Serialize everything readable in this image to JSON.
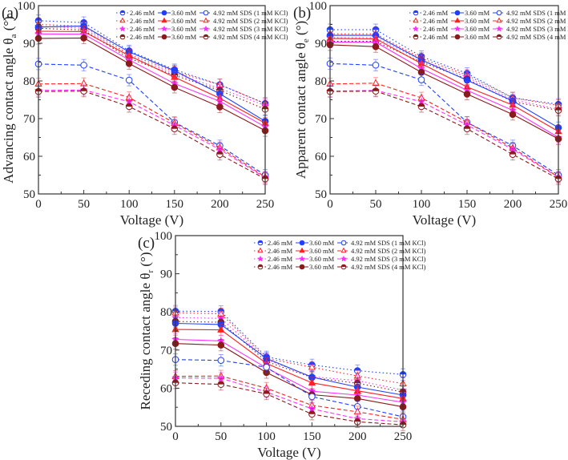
{
  "chart_data": [
    {
      "type": "line",
      "panel_label": "(a)",
      "xlabel": "Voltage (V)",
      "ylabel_main": "Advancing contact angle  θ",
      "ylabel_sub": "a",
      "ylabel_unit": " (°)",
      "xlim": [
        0,
        250
      ],
      "ylim": [
        50,
        100
      ],
      "xticks": [
        0,
        50,
        100,
        150,
        200,
        250
      ],
      "yticks": [
        50,
        60,
        70,
        80,
        90,
        100
      ],
      "grid": false,
      "legend_placement": "top-right",
      "yerr": 1.5,
      "x": [
        0,
        50,
        100,
        150,
        200,
        250
      ],
      "series": [
        {
          "name": "2.46 mM",
          "kcl_row": 0,
          "style": "dotted",
          "color": "#1f3fff",
          "marker": "circle-half",
          "values": [
            96,
            95.5,
            88,
            83,
            79,
            74
          ]
        },
        {
          "name": "2.46 mM",
          "kcl_row": 1,
          "style": "dotted",
          "color": "#ff2020",
          "marker": "triangle-open",
          "values": [
            95,
            94.5,
            87,
            82.5,
            79,
            74
          ]
        },
        {
          "name": "2.46 mM",
          "kcl_row": 2,
          "style": "dotted",
          "color": "#ff30ff",
          "marker": "star",
          "values": [
            94.5,
            94,
            86.5,
            82,
            78,
            73.5
          ]
        },
        {
          "name": "2.46 mM",
          "kcl_row": 3,
          "style": "dotted",
          "color": "#8b1a1a",
          "marker": "circle-half",
          "values": [
            94,
            93.5,
            86,
            81.5,
            77.5,
            72.5
          ]
        },
        {
          "name": "3.60 mM",
          "kcl_row": 0,
          "style": "solid",
          "color": "#1f3fff",
          "marker": "circle",
          "values": [
            94.3,
            94.6,
            87.7,
            82.7,
            76.6,
            69.3
          ]
        },
        {
          "name": "3.60 mM",
          "kcl_row": 1,
          "style": "solid",
          "color": "#ff2020",
          "marker": "triangle",
          "values": [
            93.2,
            93.1,
            86.7,
            81,
            75.4,
            68.8
          ]
        },
        {
          "name": "3.60 mM",
          "kcl_row": 2,
          "style": "solid",
          "color": "#ff30ff",
          "marker": "star",
          "values": [
            92.5,
            92.4,
            85.6,
            79.3,
            74.6,
            67.8
          ]
        },
        {
          "name": "3.60 mM",
          "kcl_row": 3,
          "style": "solid",
          "color": "#8b1a1a",
          "marker": "circle",
          "values": [
            91.3,
            91.4,
            84.6,
            78.3,
            73.1,
            66.8
          ]
        },
        {
          "name": "4.92 mM SDS  (1 mM KCl)",
          "kcl_row": 0,
          "style": "dashed",
          "color": "#1f3fff",
          "marker": "circle-open",
          "values": [
            84.5,
            84.2,
            80.2,
            69,
            62.8,
            55
          ]
        },
        {
          "name": "4.92 mM SDS  (2 mM KCl)",
          "kcl_row": 1,
          "style": "dashed",
          "color": "#ff2020",
          "marker": "triangle-open",
          "values": [
            79.2,
            79.3,
            75.6,
            68.8,
            62.3,
            54.5
          ]
        },
        {
          "name": "4.92 mM SDS  (3 mM KCl)",
          "kcl_row": 2,
          "style": "dashed",
          "color": "#ff30ff",
          "marker": "star",
          "values": [
            77.5,
            77.6,
            74.5,
            68.2,
            61.8,
            54.3
          ]
        },
        {
          "name": "4.92 mM SDS  (4 mM KCl)",
          "kcl_row": 3,
          "style": "dashed",
          "color": "#8b1a1a",
          "marker": "circle-half",
          "values": [
            77.2,
            77.3,
            73.2,
            67.3,
            60.5,
            54
          ]
        }
      ]
    },
    {
      "type": "line",
      "panel_label": "(b)",
      "xlabel": "Voltage (V)",
      "ylabel_main": "Apparent contact angle θ",
      "ylabel_sub": "e",
      "ylabel_unit": " (°)",
      "xlim": [
        0,
        250
      ],
      "ylim": [
        50,
        100
      ],
      "xticks": [
        0,
        50,
        100,
        150,
        200,
        250
      ],
      "yticks": [
        50,
        60,
        70,
        80,
        90,
        100
      ],
      "grid": false,
      "legend_placement": "top-right",
      "yerr": 1.5,
      "x": [
        0,
        50,
        100,
        150,
        200,
        250
      ],
      "series": [
        {
          "name": "2.46 mM",
          "kcl_row": 0,
          "style": "dotted",
          "color": "#1f3fff",
          "marker": "circle-half",
          "values": [
            93.6,
            93.6,
            86.5,
            82,
            75.5,
            73.8
          ]
        },
        {
          "name": "2.46 mM",
          "kcl_row": 1,
          "style": "dotted",
          "color": "#ff2020",
          "marker": "triangle-open",
          "values": [
            92.5,
            92.5,
            86,
            81.5,
            75.5,
            73.5
          ]
        },
        {
          "name": "2.46 mM",
          "kcl_row": 2,
          "style": "dotted",
          "color": "#ff30ff",
          "marker": "star",
          "values": [
            91.5,
            91.5,
            85.5,
            81,
            75,
            72.5
          ]
        },
        {
          "name": "2.46 mM",
          "kcl_row": 3,
          "style": "dotted",
          "color": "#8b1a1a",
          "marker": "circle-half",
          "values": [
            90.5,
            90.5,
            85,
            80.5,
            74.5,
            72.2
          ]
        },
        {
          "name": "3.60 mM",
          "kcl_row": 0,
          "style": "solid",
          "color": "#1f3fff",
          "marker": "circle",
          "values": [
            92.1,
            92.1,
            85.6,
            80.2,
            74.7,
            67.6
          ]
        },
        {
          "name": "3.60 mM",
          "kcl_row": 1,
          "style": "solid",
          "color": "#ff2020",
          "marker": "triangle",
          "values": [
            91.3,
            91.2,
            84.6,
            78.4,
            73.6,
            66.6
          ]
        },
        {
          "name": "3.60 mM",
          "kcl_row": 2,
          "style": "solid",
          "color": "#ff30ff",
          "marker": "star",
          "values": [
            90.3,
            90.3,
            83.3,
            77.5,
            72.2,
            65
          ]
        },
        {
          "name": "3.60 mM",
          "kcl_row": 3,
          "style": "solid",
          "color": "#8b1a1a",
          "marker": "circle",
          "values": [
            89.6,
            89.1,
            82.3,
            76.5,
            71.1,
            64.6
          ]
        },
        {
          "name": "4.92 mM SDS  (1 mM KCl)",
          "kcl_row": 0,
          "style": "dashed",
          "color": "#1f3fff",
          "marker": "circle-open",
          "values": [
            84.6,
            84.2,
            80.3,
            69,
            62.8,
            55
          ]
        },
        {
          "name": "4.92 mM SDS  (2 mM KCl)",
          "kcl_row": 1,
          "style": "dashed",
          "color": "#ff2020",
          "marker": "triangle-open",
          "values": [
            79.2,
            79.4,
            75.5,
            69,
            62.2,
            54.5
          ]
        },
        {
          "name": "4.92 mM SDS  (3 mM KCl)",
          "kcl_row": 2,
          "style": "dashed",
          "color": "#ff30ff",
          "marker": "star",
          "values": [
            77.3,
            77.5,
            74.5,
            68.3,
            61.8,
            54.4
          ]
        },
        {
          "name": "4.92 mM SDS  (4 mM KCl)",
          "kcl_row": 3,
          "style": "dashed",
          "color": "#8b1a1a",
          "marker": "circle-half",
          "values": [
            77.2,
            77.3,
            73.2,
            67.3,
            60.5,
            54
          ]
        }
      ]
    },
    {
      "type": "line",
      "panel_label": "(c)",
      "xlabel": "Voltage (V)",
      "ylabel_main": "Receding contact angle θ",
      "ylabel_sub": "r",
      "ylabel_unit": " (°)",
      "xlim": [
        0,
        250
      ],
      "ylim": [
        50,
        100
      ],
      "xticks": [
        0,
        50,
        100,
        150,
        200,
        250
      ],
      "yticks": [
        50,
        60,
        70,
        80,
        90,
        100
      ],
      "grid": false,
      "legend_placement": "top-right",
      "yerr": 1.5,
      "x": [
        0,
        50,
        100,
        150,
        200,
        250
      ],
      "series": [
        {
          "name": "2.46 mM",
          "kcl_row": 0,
          "style": "dotted",
          "color": "#1f3fff",
          "marker": "circle-half",
          "values": [
            80.2,
            80.1,
            68.2,
            66.1,
            64.6,
            63.6
          ]
        },
        {
          "name": "2.46 mM",
          "kcl_row": 1,
          "style": "dotted",
          "color": "#ff2020",
          "marker": "triangle-open",
          "values": [
            79.8,
            79.5,
            67.8,
            65.5,
            63.2,
            61.2
          ]
        },
        {
          "name": "2.46 mM",
          "kcl_row": 2,
          "style": "dotted",
          "color": "#ff30ff",
          "marker": "star",
          "values": [
            78.5,
            78.3,
            67.5,
            63,
            62,
            59.5
          ]
        },
        {
          "name": "2.46 mM",
          "kcl_row": 3,
          "style": "dotted",
          "color": "#8b1a1a",
          "marker": "circle-half",
          "values": [
            77.5,
            77.3,
            67,
            62.8,
            61.3,
            59
          ]
        },
        {
          "name": "3.60 mM",
          "kcl_row": 0,
          "style": "solid",
          "color": "#1f3fff",
          "marker": "circle",
          "values": [
            77,
            76.7,
            67.8,
            62.9,
            60.3,
            58.2
          ]
        },
        {
          "name": "3.60 mM",
          "kcl_row": 1,
          "style": "solid",
          "color": "#ff2020",
          "marker": "triangle",
          "values": [
            75.4,
            75.3,
            66.5,
            61.4,
            59.3,
            57.3
          ]
        },
        {
          "name": "3.60 mM",
          "kcl_row": 2,
          "style": "solid",
          "color": "#ff30ff",
          "marker": "star",
          "values": [
            72.8,
            72.4,
            65.3,
            59.2,
            58.2,
            56.3
          ]
        },
        {
          "name": "3.60 mM",
          "kcl_row": 3,
          "style": "solid",
          "color": "#8b1a1a",
          "marker": "circle",
          "values": [
            71.7,
            71.3,
            64.1,
            58.3,
            57.3,
            55.1
          ]
        },
        {
          "name": "4.92 mM SDS  (1 mM KCl)",
          "kcl_row": 0,
          "style": "dashed",
          "color": "#1f3fff",
          "marker": "circle-open",
          "values": [
            67.5,
            67.3,
            65.5,
            57.8,
            55.2,
            52.5
          ]
        },
        {
          "name": "4.92 mM SDS  (2 mM KCl)",
          "kcl_row": 1,
          "style": "dashed",
          "color": "#ff2020",
          "marker": "triangle-open",
          "values": [
            63.1,
            63.2,
            60,
            55.5,
            53.8,
            51.8
          ]
        },
        {
          "name": "4.92 mM SDS  (3 mM KCl)",
          "kcl_row": 2,
          "style": "dashed",
          "color": "#ff30ff",
          "marker": "star",
          "values": [
            62.7,
            62.6,
            59,
            54.6,
            52,
            51.2
          ]
        },
        {
          "name": "4.92 mM SDS  (4 mM KCl)",
          "kcl_row": 3,
          "style": "dashed",
          "color": "#8b1a1a",
          "marker": "circle-half",
          "values": [
            61.4,
            61,
            58.5,
            53.2,
            51.2,
            50.4
          ]
        }
      ]
    }
  ]
}
